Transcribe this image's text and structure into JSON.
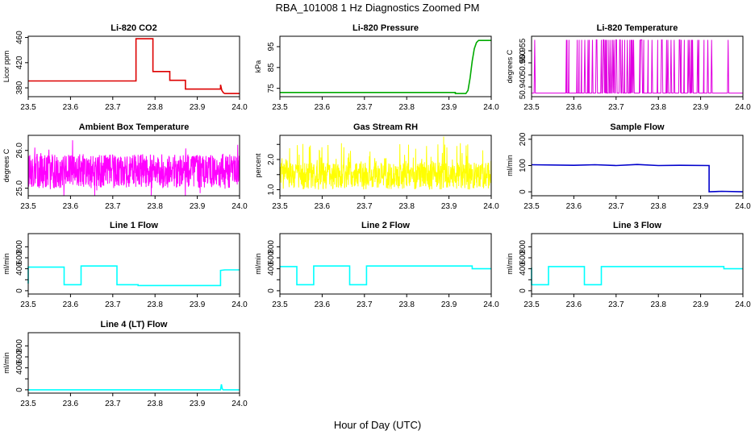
{
  "figure": {
    "title": "RBA_101008  1 Hz Diagnostics Zoomed PM",
    "xlabel": "Hour of Day (UTC)"
  },
  "chart_data": [
    {
      "type": "line",
      "title": "Li-820 CO2",
      "ylabel": "Licor ppm",
      "color": "#dd0000",
      "xlim": [
        23.5,
        24.0
      ],
      "ylim": [
        366,
        462
      ],
      "xticks": [
        "23.5",
        "23.6",
        "23.7",
        "23.8",
        "23.9",
        "24.0"
      ],
      "yticks": [
        380,
        420,
        460
      ],
      "ytick_labels": [
        "380",
        "420",
        "460"
      ],
      "series": [
        {
          "x": [
            23.5,
            23.755,
            23.755,
            23.795,
            23.795,
            23.835,
            23.835,
            23.872,
            23.872,
            23.955,
            23.955,
            23.958,
            23.962,
            23.965,
            24.0
          ],
          "y": [
            391,
            391,
            458,
            458,
            406,
            406,
            392,
            392,
            378,
            378,
            385,
            376,
            372,
            371,
            371
          ]
        }
      ]
    },
    {
      "type": "line",
      "title": "Li-820 Pressure",
      "ylabel": "kPa",
      "color": "#00aa00",
      "xlim": [
        23.5,
        24.0
      ],
      "ylim": [
        71,
        100
      ],
      "xticks": [
        "23.5",
        "23.6",
        "23.7",
        "23.8",
        "23.9",
        "24.0"
      ],
      "yticks": [
        75,
        85,
        95
      ],
      "ytick_labels": [
        "75",
        "85",
        "95"
      ],
      "series": [
        {
          "x": [
            23.5,
            23.915,
            23.915,
            23.94,
            23.945,
            23.95,
            23.955,
            23.96,
            23.965,
            23.97,
            24.0
          ],
          "y": [
            73,
            73,
            72.5,
            72.5,
            74,
            80,
            88,
            94,
            97,
            98,
            98
          ]
        }
      ]
    },
    {
      "type": "line",
      "title": "Li-820 Temperature",
      "ylabel": "degrees C",
      "color": "#e000e0",
      "xlim": [
        23.5,
        24.0
      ],
      "ylim": [
        50.936,
        50.961
      ],
      "xticks": [
        "23.5",
        "23.6",
        "23.7",
        "23.8",
        "23.9",
        "24.0"
      ],
      "yticks": [
        50.94,
        50.945,
        50.95,
        50.955
      ],
      "ytick_labels": [
        "50.940",
        "",
        "50.950",
        "50.955"
      ],
      "series": [
        {
          "x": [],
          "y": []
        }
      ]
    },
    {
      "type": "line",
      "title": "Ambient Box Temperature",
      "ylabel": "degrees C",
      "color": "#ff00ff",
      "xlim": [
        23.5,
        24.0
      ],
      "ylim": [
        24.8,
        26.4
      ],
      "xticks": [
        "23.5",
        "23.6",
        "23.7",
        "23.8",
        "23.9",
        "24.0"
      ],
      "yticks": [
        25.0,
        26.0
      ],
      "ytick_labels": [
        "25.0",
        "26.0"
      ],
      "series": [
        {
          "x": [],
          "y": []
        }
      ]
    },
    {
      "type": "line",
      "title": "Gas Stream RH",
      "ylabel": "percent",
      "color": "#ffff00",
      "xlim": [
        23.5,
        24.0
      ],
      "ylim": [
        0.8,
        2.8
      ],
      "xticks": [
        "23.5",
        "23.6",
        "23.7",
        "23.8",
        "23.9",
        "24.0"
      ],
      "yticks": [
        1.0,
        1.5,
        2.0,
        2.5
      ],
      "ytick_labels": [
        "1.0",
        "",
        "2.0",
        ""
      ],
      "series": [
        {
          "x": [],
          "y": []
        }
      ]
    },
    {
      "type": "line",
      "title": "Sample Flow",
      "ylabel": "ml/min",
      "color": "#0000cc",
      "xlim": [
        23.5,
        24.0
      ],
      "ylim": [
        -15,
        215
      ],
      "xticks": [
        "23.5",
        "23.6",
        "23.7",
        "23.8",
        "23.9",
        "24.0"
      ],
      "yticks": [
        0,
        100,
        200
      ],
      "ytick_labels": [
        "0",
        "100",
        "200"
      ],
      "series": [
        {
          "x": [
            23.5,
            23.6,
            23.65,
            23.7,
            23.75,
            23.8,
            23.85,
            23.92,
            23.92,
            23.95,
            24.0
          ],
          "y": [
            103,
            101,
            103,
            100,
            104,
            100,
            101,
            100,
            0,
            2,
            0
          ]
        }
      ]
    },
    {
      "type": "line",
      "title": "Line 1 Flow",
      "ylabel": "ml/min",
      "color": "#00ffff",
      "xlim": [
        23.5,
        24.0
      ],
      "ylim": [
        -60,
        1040
      ],
      "xticks": [
        "23.5",
        "23.6",
        "23.7",
        "23.8",
        "23.9",
        "24.0"
      ],
      "yticks": [
        0,
        200,
        400,
        600,
        800
      ],
      "ytick_labels": [
        "0",
        "",
        "400",
        "600",
        "800"
      ],
      "series": [
        {
          "x": [
            23.5,
            23.5,
            23.505,
            23.585,
            23.585,
            23.625,
            23.625,
            23.71,
            23.71,
            23.76,
            23.76,
            23.955,
            23.955,
            23.965,
            24.0
          ],
          "y": [
            130,
            430,
            430,
            430,
            110,
            110,
            450,
            450,
            110,
            110,
            95,
            95,
            370,
            380,
            380
          ]
        }
      ]
    },
    {
      "type": "line",
      "title": "Line 2 Flow",
      "ylabel": "ml/min",
      "color": "#00ffff",
      "xlim": [
        23.5,
        24.0
      ],
      "ylim": [
        -60,
        1040
      ],
      "xticks": [
        "23.5",
        "23.6",
        "23.7",
        "23.8",
        "23.9",
        "24.0"
      ],
      "yticks": [
        0,
        200,
        400,
        600,
        800
      ],
      "ytick_labels": [
        "0",
        "",
        "400",
        "600",
        "800"
      ],
      "series": [
        {
          "x": [
            23.5,
            23.54,
            23.54,
            23.58,
            23.58,
            23.665,
            23.665,
            23.705,
            23.705,
            23.955,
            23.955,
            24.0
          ],
          "y": [
            440,
            440,
            110,
            110,
            450,
            450,
            110,
            110,
            450,
            450,
            400,
            400
          ]
        }
      ]
    },
    {
      "type": "line",
      "title": "Line 3 Flow",
      "ylabel": "ml/min",
      "color": "#00ffff",
      "xlim": [
        23.5,
        24.0
      ],
      "ylim": [
        -60,
        1040
      ],
      "xticks": [
        "23.5",
        "23.6",
        "23.7",
        "23.8",
        "23.9",
        "24.0"
      ],
      "yticks": [
        0,
        200,
        400,
        600,
        800
      ],
      "ytick_labels": [
        "0",
        "",
        "400",
        "600",
        "800"
      ],
      "series": [
        {
          "x": [
            23.5,
            23.5,
            23.505,
            23.54,
            23.54,
            23.625,
            23.625,
            23.665,
            23.665,
            23.955,
            23.955,
            24.0
          ],
          "y": [
            420,
            110,
            110,
            110,
            440,
            440,
            110,
            110,
            440,
            440,
            400,
            400
          ]
        }
      ]
    },
    {
      "type": "line",
      "title": "Line 4 (LT) Flow",
      "ylabel": "ml/min",
      "color": "#00ffff",
      "xlim": [
        23.5,
        24.0
      ],
      "ylim": [
        -60,
        1040
      ],
      "xticks": [
        "23.5",
        "23.6",
        "23.7",
        "23.8",
        "23.9",
        "24.0"
      ],
      "yticks": [
        0,
        200,
        400,
        600,
        800
      ],
      "ytick_labels": [
        "0",
        "",
        "400",
        "600",
        "800"
      ],
      "series": [
        {
          "x": [
            23.5,
            23.955,
            23.957,
            23.959,
            23.961,
            24.0
          ],
          "y": [
            0,
            0,
            100,
            20,
            0,
            0
          ]
        }
      ]
    }
  ]
}
